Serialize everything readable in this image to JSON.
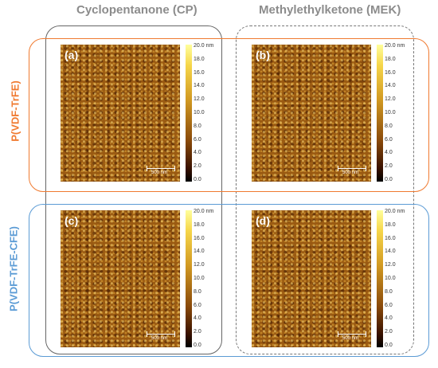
{
  "column_titles": {
    "cp": "Cyclopentanone (CP)",
    "mek": "Methylethylketone (MEK)"
  },
  "row_titles": {
    "top": "P(VDF-TrFE)",
    "bottom": "P(VDF-TrFE-CFE)"
  },
  "colors": {
    "orange": "#f07a30",
    "blue": "#5b9bd5",
    "gray": "#666666",
    "dashed": "#777777"
  },
  "scale_bar": "500 nm",
  "colorbar_ticks": [
    "20.0 nm",
    "18.0",
    "16.0",
    "14.0",
    "12.0",
    "10.0",
    "8.0",
    "6.0",
    "4.0",
    "2.0",
    "0.0"
  ],
  "panels": [
    {
      "label": "(a)"
    },
    {
      "label": "(b)"
    },
    {
      "label": "(c)"
    },
    {
      "label": "(d)"
    }
  ]
}
